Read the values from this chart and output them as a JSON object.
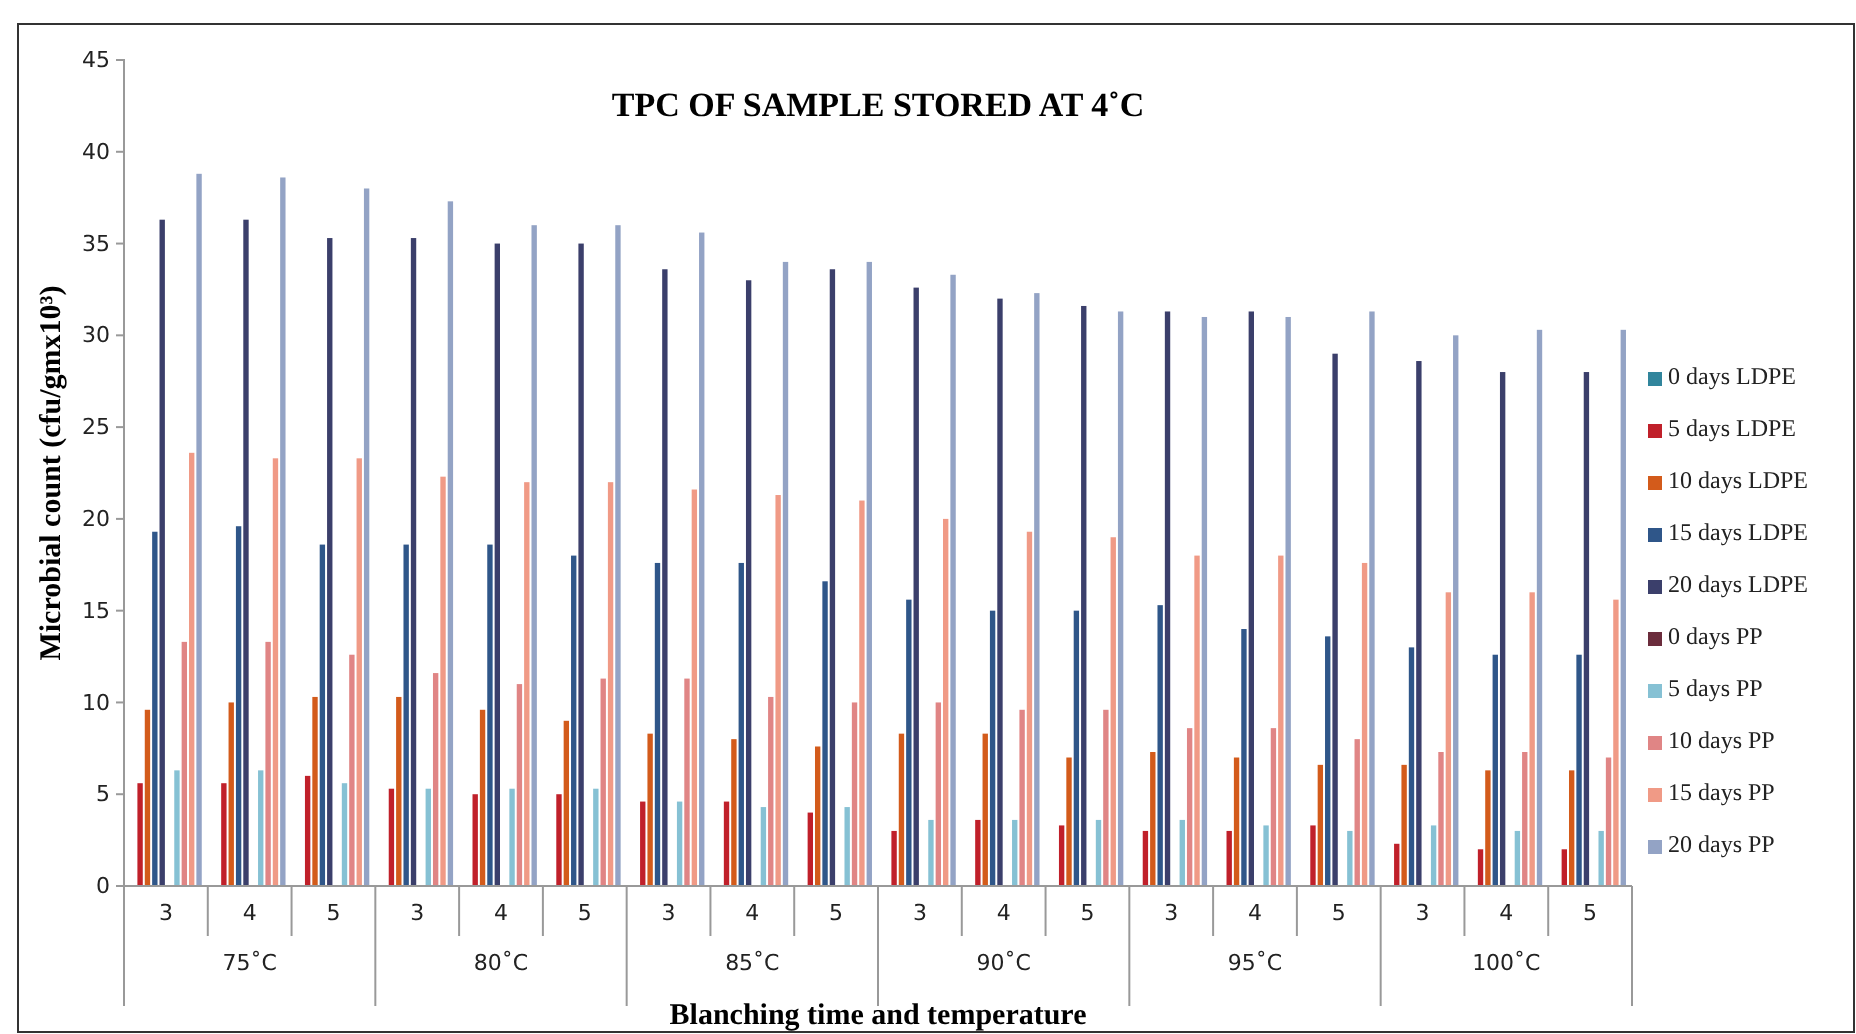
{
  "chart_data": {
    "type": "bar",
    "title": "TPC OF SAMPLE STORED AT 4˚C",
    "xlabel": "Blanching time and temperature",
    "ylabel": "Microbial count (cfu/gmx10³)",
    "categories": [
      "3",
      "4",
      "5",
      "3",
      "4",
      "5",
      "3",
      "4",
      "5",
      "3",
      "4",
      "5",
      "3",
      "4",
      "5",
      "3",
      "4",
      "5"
    ],
    "annotations": [
      "75˚C",
      "80˚C",
      "85˚C",
      "90˚C",
      "95˚C",
      "100˚C"
    ],
    "ylim": [
      0,
      45
    ],
    "yticks": [
      0,
      5,
      10,
      15,
      20,
      25,
      30,
      35,
      40,
      45
    ],
    "grid": false,
    "legend": "right",
    "series": [
      {
        "name": "0 days LDPE",
        "color": "#31859c",
        "values": [
          0,
          0,
          0,
          0,
          0,
          0,
          0,
          0,
          0,
          0,
          0,
          0,
          0,
          0,
          0,
          0,
          0,
          0
        ]
      },
      {
        "name": "5 days LDPE",
        "color": "#c0202a",
        "values": [
          5.6,
          5.6,
          6.0,
          5.3,
          5.0,
          5.0,
          4.6,
          4.6,
          4.0,
          3.0,
          3.6,
          3.3,
          3.0,
          3.0,
          3.3,
          2.3,
          2.0,
          2.0
        ]
      },
      {
        "name": "10 days LDPE",
        "color": "#d35b1b",
        "values": [
          9.6,
          10.0,
          10.3,
          10.3,
          9.6,
          9.0,
          8.3,
          8.0,
          7.6,
          8.3,
          8.3,
          7.0,
          7.3,
          7.0,
          6.6,
          6.6,
          6.3,
          6.3
        ]
      },
      {
        "name": "15 days LDPE",
        "color": "#2f5689",
        "values": [
          19.3,
          19.6,
          18.6,
          18.6,
          18.6,
          18.0,
          17.6,
          17.6,
          16.6,
          15.6,
          15.0,
          15.0,
          15.3,
          14.0,
          13.6,
          13.0,
          12.6,
          12.6
        ]
      },
      {
        "name": "20 days LDPE",
        "color": "#3b3f6b",
        "values": [
          36.3,
          36.3,
          35.3,
          35.3,
          35.0,
          35.0,
          33.6,
          33.0,
          33.6,
          32.6,
          32.0,
          31.6,
          31.3,
          31.3,
          29.0,
          28.6,
          28.0,
          28.0
        ]
      },
      {
        "name": "0 days PP",
        "color": "#6b2c3c",
        "values": [
          0,
          0,
          0,
          0,
          0,
          0,
          0,
          0,
          0,
          0,
          0,
          0,
          0,
          0,
          0,
          0,
          0,
          0
        ]
      },
      {
        "name": "5 days PP",
        "color": "#86c1d4",
        "values": [
          6.3,
          6.3,
          5.6,
          5.3,
          5.3,
          5.3,
          4.6,
          4.3,
          4.3,
          3.6,
          3.6,
          3.6,
          3.6,
          3.3,
          3.0,
          3.3,
          3.0,
          3.0
        ]
      },
      {
        "name": "10 days PP",
        "color": "#e08585",
        "values": [
          13.3,
          13.3,
          12.6,
          11.6,
          11.0,
          11.3,
          11.3,
          10.3,
          10.0,
          10.0,
          9.6,
          9.6,
          8.6,
          8.6,
          8.0,
          7.3,
          7.3,
          7.0
        ]
      },
      {
        "name": "15 days PP",
        "color": "#f09a86",
        "values": [
          23.6,
          23.3,
          23.3,
          22.3,
          22.0,
          22.0,
          21.6,
          21.3,
          21.0,
          20.0,
          19.3,
          19.0,
          18.0,
          18.0,
          17.6,
          16.0,
          16.0,
          15.6
        ]
      },
      {
        "name": "20 days PP",
        "color": "#93a3c5",
        "values": [
          38.8,
          38.6,
          38.0,
          37.3,
          36.0,
          36.0,
          35.6,
          34.0,
          34.0,
          33.3,
          32.3,
          31.3,
          31.0,
          31.0,
          31.3,
          30.0,
          30.3,
          30.3
        ]
      }
    ]
  }
}
